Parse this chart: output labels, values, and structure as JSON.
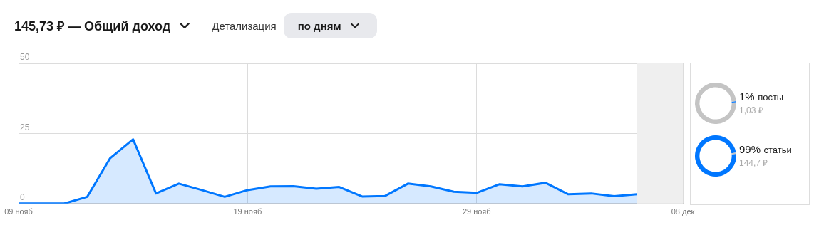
{
  "chart_data": [
    {
      "type": "area",
      "title": "145,73 ₽ — Общий доход",
      "annotations": [
        "Детализация",
        "по дням"
      ],
      "x": [
        "--11-09",
        "--11-10",
        "--11-11",
        "--11-12",
        "--11-13",
        "--11-14",
        "--11-15",
        "--11-16",
        "--11-17",
        "--11-18",
        "--11-19",
        "--11-20",
        "--11-21",
        "--11-22",
        "--11-23",
        "--11-24",
        "--11-25",
        "--11-26",
        "--11-27",
        "--11-28",
        "--11-29",
        "--11-30",
        "--12-01",
        "--12-02",
        "--12-03",
        "--12-04",
        "--12-05",
        "--12-06"
      ],
      "series": [
        {
          "color": "#0077ff",
          "values": [
            0,
            0,
            0,
            2.4,
            16.2,
            22.9,
            3.6,
            7.1,
            4.8,
            2.4,
            4.8,
            6.1,
            6.2,
            5.3,
            5.9,
            2.5,
            2.7,
            7.1,
            6.1,
            4.2,
            3.8,
            6.9,
            6.1,
            7.4,
            3.3,
            3.6,
            2.6,
            3.3
          ]
        }
      ],
      "xlim": [
        "--11-09",
        "--12-08"
      ],
      "xticks": [
        {
          "value": "--11-09",
          "label": "09 нояб"
        },
        {
          "value": "--11-19",
          "label": "19 нояб"
        },
        {
          "value": "--11-29",
          "label": "29 нояб"
        },
        {
          "value": "--12-08",
          "label": "08 дек"
        }
      ],
      "ylim": [
        0,
        50
      ],
      "yticks": [
        0,
        25,
        50
      ],
      "grid": true,
      "legend": false,
      "bands": [
        {
          "axis": "x",
          "from": "--12-06",
          "to": "--12-08",
          "color": "#efefef"
        }
      ]
    },
    {
      "type": "donut",
      "categories": [
        "посты",
        null
      ],
      "values": [
        1,
        99
      ],
      "colors": [
        "#0077ff",
        "#c4c4c4"
      ],
      "value_labels": [
        "1%",
        null
      ],
      "annotations": [
        "1,03 ₽"
      ]
    },
    {
      "type": "donut",
      "categories": [
        "статьи",
        null
      ],
      "values": [
        99,
        1
      ],
      "colors": [
        "#0077ff",
        "#c4c4c4"
      ],
      "value_labels": [
        "99%",
        null
      ],
      "annotations": [
        "144,7 ₽"
      ]
    }
  ]
}
